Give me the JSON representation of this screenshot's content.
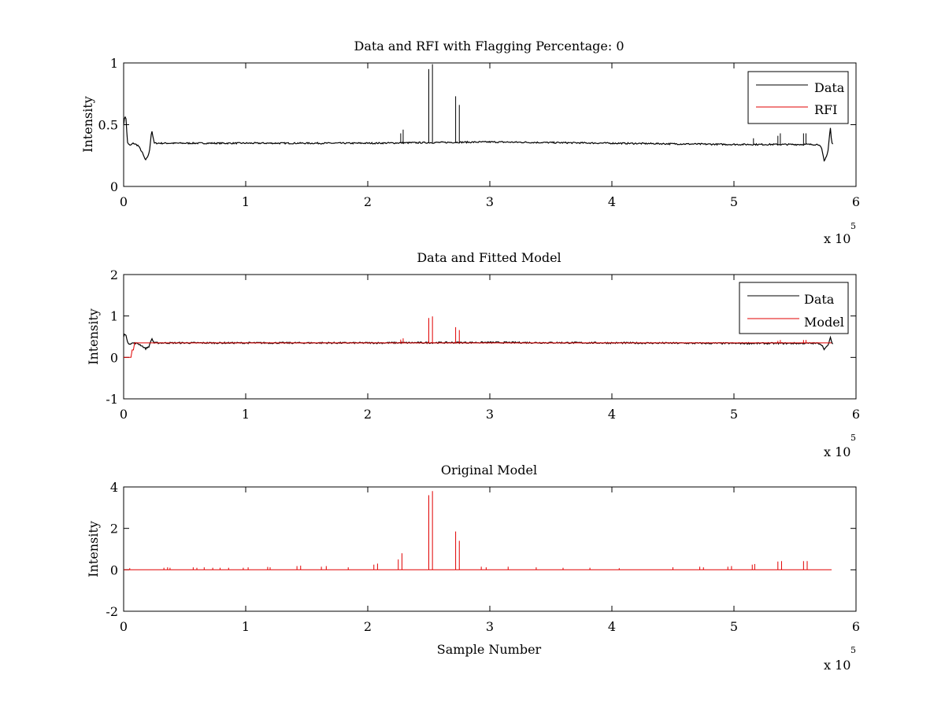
{
  "window_title": "Data and RFI with Flagging Percentage: 0",
  "colors": {
    "data": "#000000",
    "red": "#e00000",
    "axes": "#000000",
    "background": "#ffffff"
  },
  "x_multiplier": {
    "base": "x 10",
    "exponent": "5"
  },
  "chart_data": [
    {
      "type": "line",
      "title": "Data and RFI with Flagging Percentage: 0",
      "xlabel": "",
      "ylabel": "Intensity",
      "xlim": [
        0,
        6
      ],
      "ylim": [
        0,
        1
      ],
      "xticks": [
        "0",
        "1",
        "2",
        "3",
        "4",
        "5",
        "6"
      ],
      "yticks": [
        "0",
        "0.5",
        "1"
      ],
      "x_multiplier": "x 10^5",
      "legend_position": "top-right",
      "series": [
        {
          "name": "Data",
          "color": "#000000",
          "baseline": 0.35,
          "x": [
            0,
            0.01,
            0.02,
            0.03,
            0.05,
            0.08,
            0.12,
            0.15,
            0.18,
            0.21,
            0.23,
            0.25,
            0.3,
            1,
            2,
            3,
            4,
            5,
            5.5,
            5.7,
            5.72,
            5.74,
            5.77,
            5.79,
            5.8,
            5.81
          ],
          "y": [
            0.5,
            0.57,
            0.55,
            0.36,
            0.33,
            0.35,
            0.33,
            0.28,
            0.21,
            0.27,
            0.46,
            0.35,
            0.35,
            0.35,
            0.35,
            0.36,
            0.35,
            0.34,
            0.34,
            0.34,
            0.3,
            0.2,
            0.28,
            0.48,
            0.36,
            0.34
          ],
          "spikes": [
            {
              "x": 2.27,
              "y": 0.43
            },
            {
              "x": 2.29,
              "y": 0.46
            },
            {
              "x": 2.5,
              "y": 0.95
            },
            {
              "x": 2.53,
              "y": 0.99
            },
            {
              "x": 2.72,
              "y": 0.73
            },
            {
              "x": 2.75,
              "y": 0.66
            },
            {
              "x": 5.16,
              "y": 0.39
            },
            {
              "x": 5.36,
              "y": 0.41
            },
            {
              "x": 5.38,
              "y": 0.43
            },
            {
              "x": 5.57,
              "y": 0.43
            },
            {
              "x": 5.59,
              "y": 0.43
            }
          ]
        },
        {
          "name": "RFI",
          "color": "#e00000",
          "x": [],
          "y": []
        }
      ]
    },
    {
      "type": "line",
      "title": "Data and Fitted Model",
      "xlabel": "",
      "ylabel": "Intensity",
      "xlim": [
        0,
        6
      ],
      "ylim": [
        -1,
        2
      ],
      "xticks": [
        "0",
        "1",
        "2",
        "3",
        "4",
        "5",
        "6"
      ],
      "yticks": [
        "-1",
        "0",
        "1",
        "2"
      ],
      "x_multiplier": "x 10^5",
      "legend_position": "top-right",
      "series": [
        {
          "name": "Data",
          "color": "#000000",
          "x": [
            0,
            0.01,
            0.02,
            0.03,
            0.05,
            0.08,
            0.12,
            0.15,
            0.18,
            0.21,
            0.23,
            0.25,
            0.3,
            1,
            2,
            3,
            4,
            5,
            5.5,
            5.7,
            5.72,
            5.74,
            5.77,
            5.79,
            5.8,
            5.81
          ],
          "y": [
            0.5,
            0.57,
            0.55,
            0.36,
            0.33,
            0.35,
            0.33,
            0.28,
            0.21,
            0.27,
            0.46,
            0.35,
            0.35,
            0.35,
            0.35,
            0.36,
            0.35,
            0.34,
            0.34,
            0.34,
            0.3,
            0.2,
            0.28,
            0.48,
            0.36,
            0.34
          ]
        },
        {
          "name": "Model",
          "color": "#e00000",
          "x": [
            0,
            0.06,
            0.07,
            0.08,
            0.09,
            5.8
          ],
          "y": [
            0,
            0,
            0.18,
            0.18,
            0.35,
            0.35
          ],
          "spikes": [
            {
              "x": 2.27,
              "y": 0.43
            },
            {
              "x": 2.29,
              "y": 0.46
            },
            {
              "x": 2.5,
              "y": 0.95
            },
            {
              "x": 2.53,
              "y": 0.99
            },
            {
              "x": 2.72,
              "y": 0.73
            },
            {
              "x": 2.75,
              "y": 0.66
            },
            {
              "x": 5.36,
              "y": 0.4
            },
            {
              "x": 5.38,
              "y": 0.42
            },
            {
              "x": 5.57,
              "y": 0.42
            },
            {
              "x": 5.59,
              "y": 0.42
            }
          ]
        }
      ]
    },
    {
      "type": "line",
      "title": "Original Model",
      "xlabel": "Sample Number",
      "ylabel": "Intensity",
      "xlim": [
        0,
        6
      ],
      "ylim": [
        -2,
        4
      ],
      "xticks": [
        "0",
        "1",
        "2",
        "3",
        "4",
        "5",
        "6"
      ],
      "yticks": [
        "-2",
        "0",
        "2",
        "4"
      ],
      "x_multiplier": "x 10^5",
      "series": [
        {
          "name": "",
          "color": "#e00000",
          "x": [
            0,
            5.8
          ],
          "y": [
            0,
            0
          ],
          "spikes": [
            {
              "x": 0.05,
              "y": 0.08
            },
            {
              "x": 0.33,
              "y": 0.1
            },
            {
              "x": 0.36,
              "y": 0.12
            },
            {
              "x": 0.38,
              "y": 0.1
            },
            {
              "x": 0.57,
              "y": 0.12
            },
            {
              "x": 0.6,
              "y": 0.1
            },
            {
              "x": 0.66,
              "y": 0.12
            },
            {
              "x": 0.73,
              "y": 0.1
            },
            {
              "x": 0.79,
              "y": 0.1
            },
            {
              "x": 0.86,
              "y": 0.1
            },
            {
              "x": 0.98,
              "y": 0.1
            },
            {
              "x": 1.02,
              "y": 0.12
            },
            {
              "x": 1.18,
              "y": 0.14
            },
            {
              "x": 1.2,
              "y": 0.12
            },
            {
              "x": 1.42,
              "y": 0.18
            },
            {
              "x": 1.45,
              "y": 0.2
            },
            {
              "x": 1.62,
              "y": 0.15
            },
            {
              "x": 1.66,
              "y": 0.18
            },
            {
              "x": 1.84,
              "y": 0.12
            },
            {
              "x": 2.05,
              "y": 0.25
            },
            {
              "x": 2.08,
              "y": 0.3
            },
            {
              "x": 2.25,
              "y": 0.5
            },
            {
              "x": 2.28,
              "y": 0.8
            },
            {
              "x": 2.5,
              "y": 3.6
            },
            {
              "x": 2.53,
              "y": 3.8
            },
            {
              "x": 2.72,
              "y": 1.85
            },
            {
              "x": 2.75,
              "y": 1.4
            },
            {
              "x": 2.93,
              "y": 0.15
            },
            {
              "x": 2.97,
              "y": 0.12
            },
            {
              "x": 3.15,
              "y": 0.15
            },
            {
              "x": 3.38,
              "y": 0.12
            },
            {
              "x": 3.6,
              "y": 0.1
            },
            {
              "x": 3.82,
              "y": 0.1
            },
            {
              "x": 4.06,
              "y": 0.08
            },
            {
              "x": 4.5,
              "y": 0.12
            },
            {
              "x": 4.72,
              "y": 0.15
            },
            {
              "x": 4.75,
              "y": 0.12
            },
            {
              "x": 4.95,
              "y": 0.15
            },
            {
              "x": 4.98,
              "y": 0.18
            },
            {
              "x": 5.15,
              "y": 0.25
            },
            {
              "x": 5.17,
              "y": 0.28
            },
            {
              "x": 5.36,
              "y": 0.4
            },
            {
              "x": 5.39,
              "y": 0.42
            },
            {
              "x": 5.57,
              "y": 0.42
            },
            {
              "x": 5.6,
              "y": 0.42
            }
          ]
        }
      ]
    }
  ]
}
